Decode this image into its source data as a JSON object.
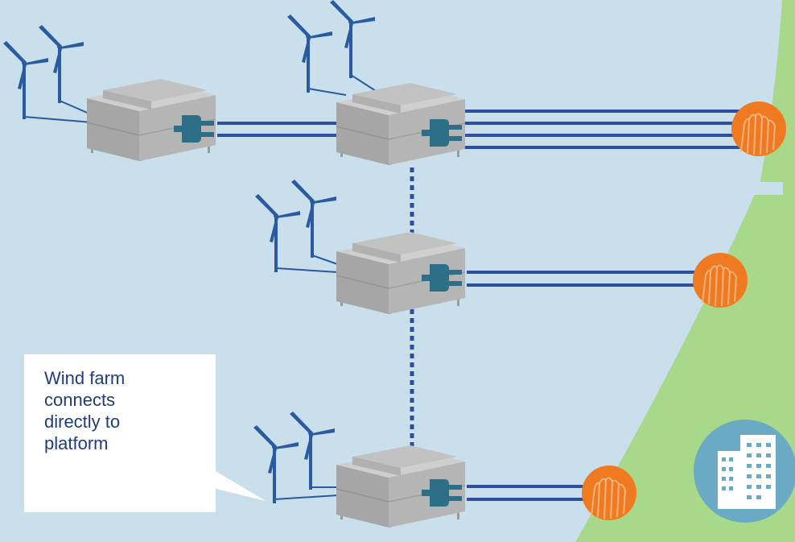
{
  "colors": {
    "sea": "#c9e0ec",
    "land": "#a8d88a",
    "cable": "#2d4f9e",
    "turbine": "#2a5aa0",
    "platform_top": "#c4c4c4",
    "platform_side": "#a6a6a6",
    "plug": "#2d6f86",
    "substation": "#f07a22",
    "city_badge": "#6aaac5"
  },
  "icons": {
    "turbine": "wind-turbine-icon",
    "platform": "offshore-platform-icon",
    "plug": "plug-icon",
    "substation": "onshore-substation-icon",
    "city": "city-buildings-icon"
  },
  "callout": {
    "lines": [
      "Wind farm",
      "connects",
      "directly to",
      "platform"
    ]
  }
}
